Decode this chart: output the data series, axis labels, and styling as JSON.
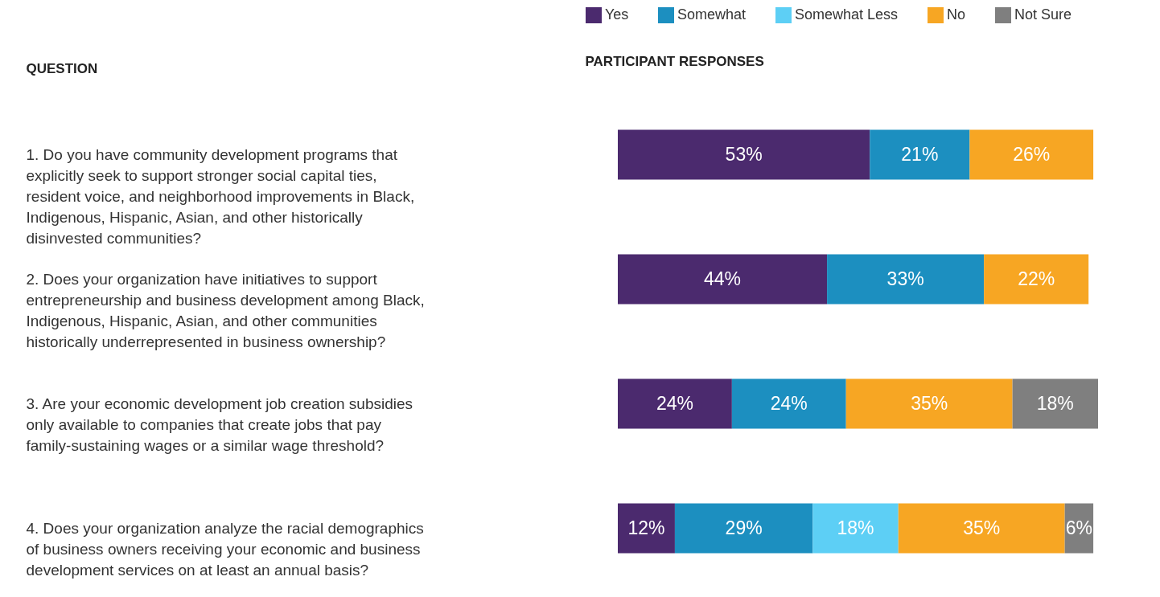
{
  "chart_data": {
    "type": "bar",
    "orientation": "horizontal",
    "stacked": true,
    "legend": "top",
    "tick_labels": "y",
    "ylabel": "QUESTION",
    "xlabel": "PARTICIPANT RESPONSES",
    "categories": [
      "1. Do you have community development programs that explicitly seek to support stronger social capital ties, resident voice, and neighborhood improvements in Black, Indigenous, Hispanic, Asian, and other historically disinvested communities?",
      "2. Does your organization have initiatives to support entrepreneurship and business development among Black, Indigenous, Hispanic, Asian, and other communities historically underrepresented in business ownership?",
      "3. Are your economic development job creation subsidies only available to companies that create jobs that pay family-sustaining wages or a similar wage threshold?",
      "4. Does your organization analyze the racial demographics of business owners receiving your economic and business development services on at least an annual basis?"
    ],
    "series": [
      {
        "name": "Yes",
        "color": "#4b2a6e",
        "values": [
          53,
          44,
          24,
          12
        ],
        "value_labels": [
          "53%",
          "44%",
          "24%",
          "12%"
        ]
      },
      {
        "name": "Somewhat",
        "color": "#1c8fc0",
        "values": [
          21,
          33,
          24,
          29
        ],
        "value_labels": [
          "21%",
          "33%",
          "24%",
          "29%"
        ]
      },
      {
        "name": "Somewhat Less",
        "color": "#5dcff5",
        "values": [
          null,
          null,
          null,
          18
        ],
        "value_labels": [
          null,
          null,
          null,
          "18%"
        ]
      },
      {
        "name": "No",
        "color": "#f7a623",
        "values": [
          26,
          22,
          35,
          35
        ],
        "value_labels": [
          "26%",
          "22%",
          "35%",
          "35%"
        ]
      },
      {
        "name": "Not Sure",
        "color": "#7f7f7f",
        "values": [
          null,
          null,
          18,
          6
        ],
        "value_labels": [
          null,
          null,
          "18%",
          "6%"
        ]
      }
    ]
  }
}
